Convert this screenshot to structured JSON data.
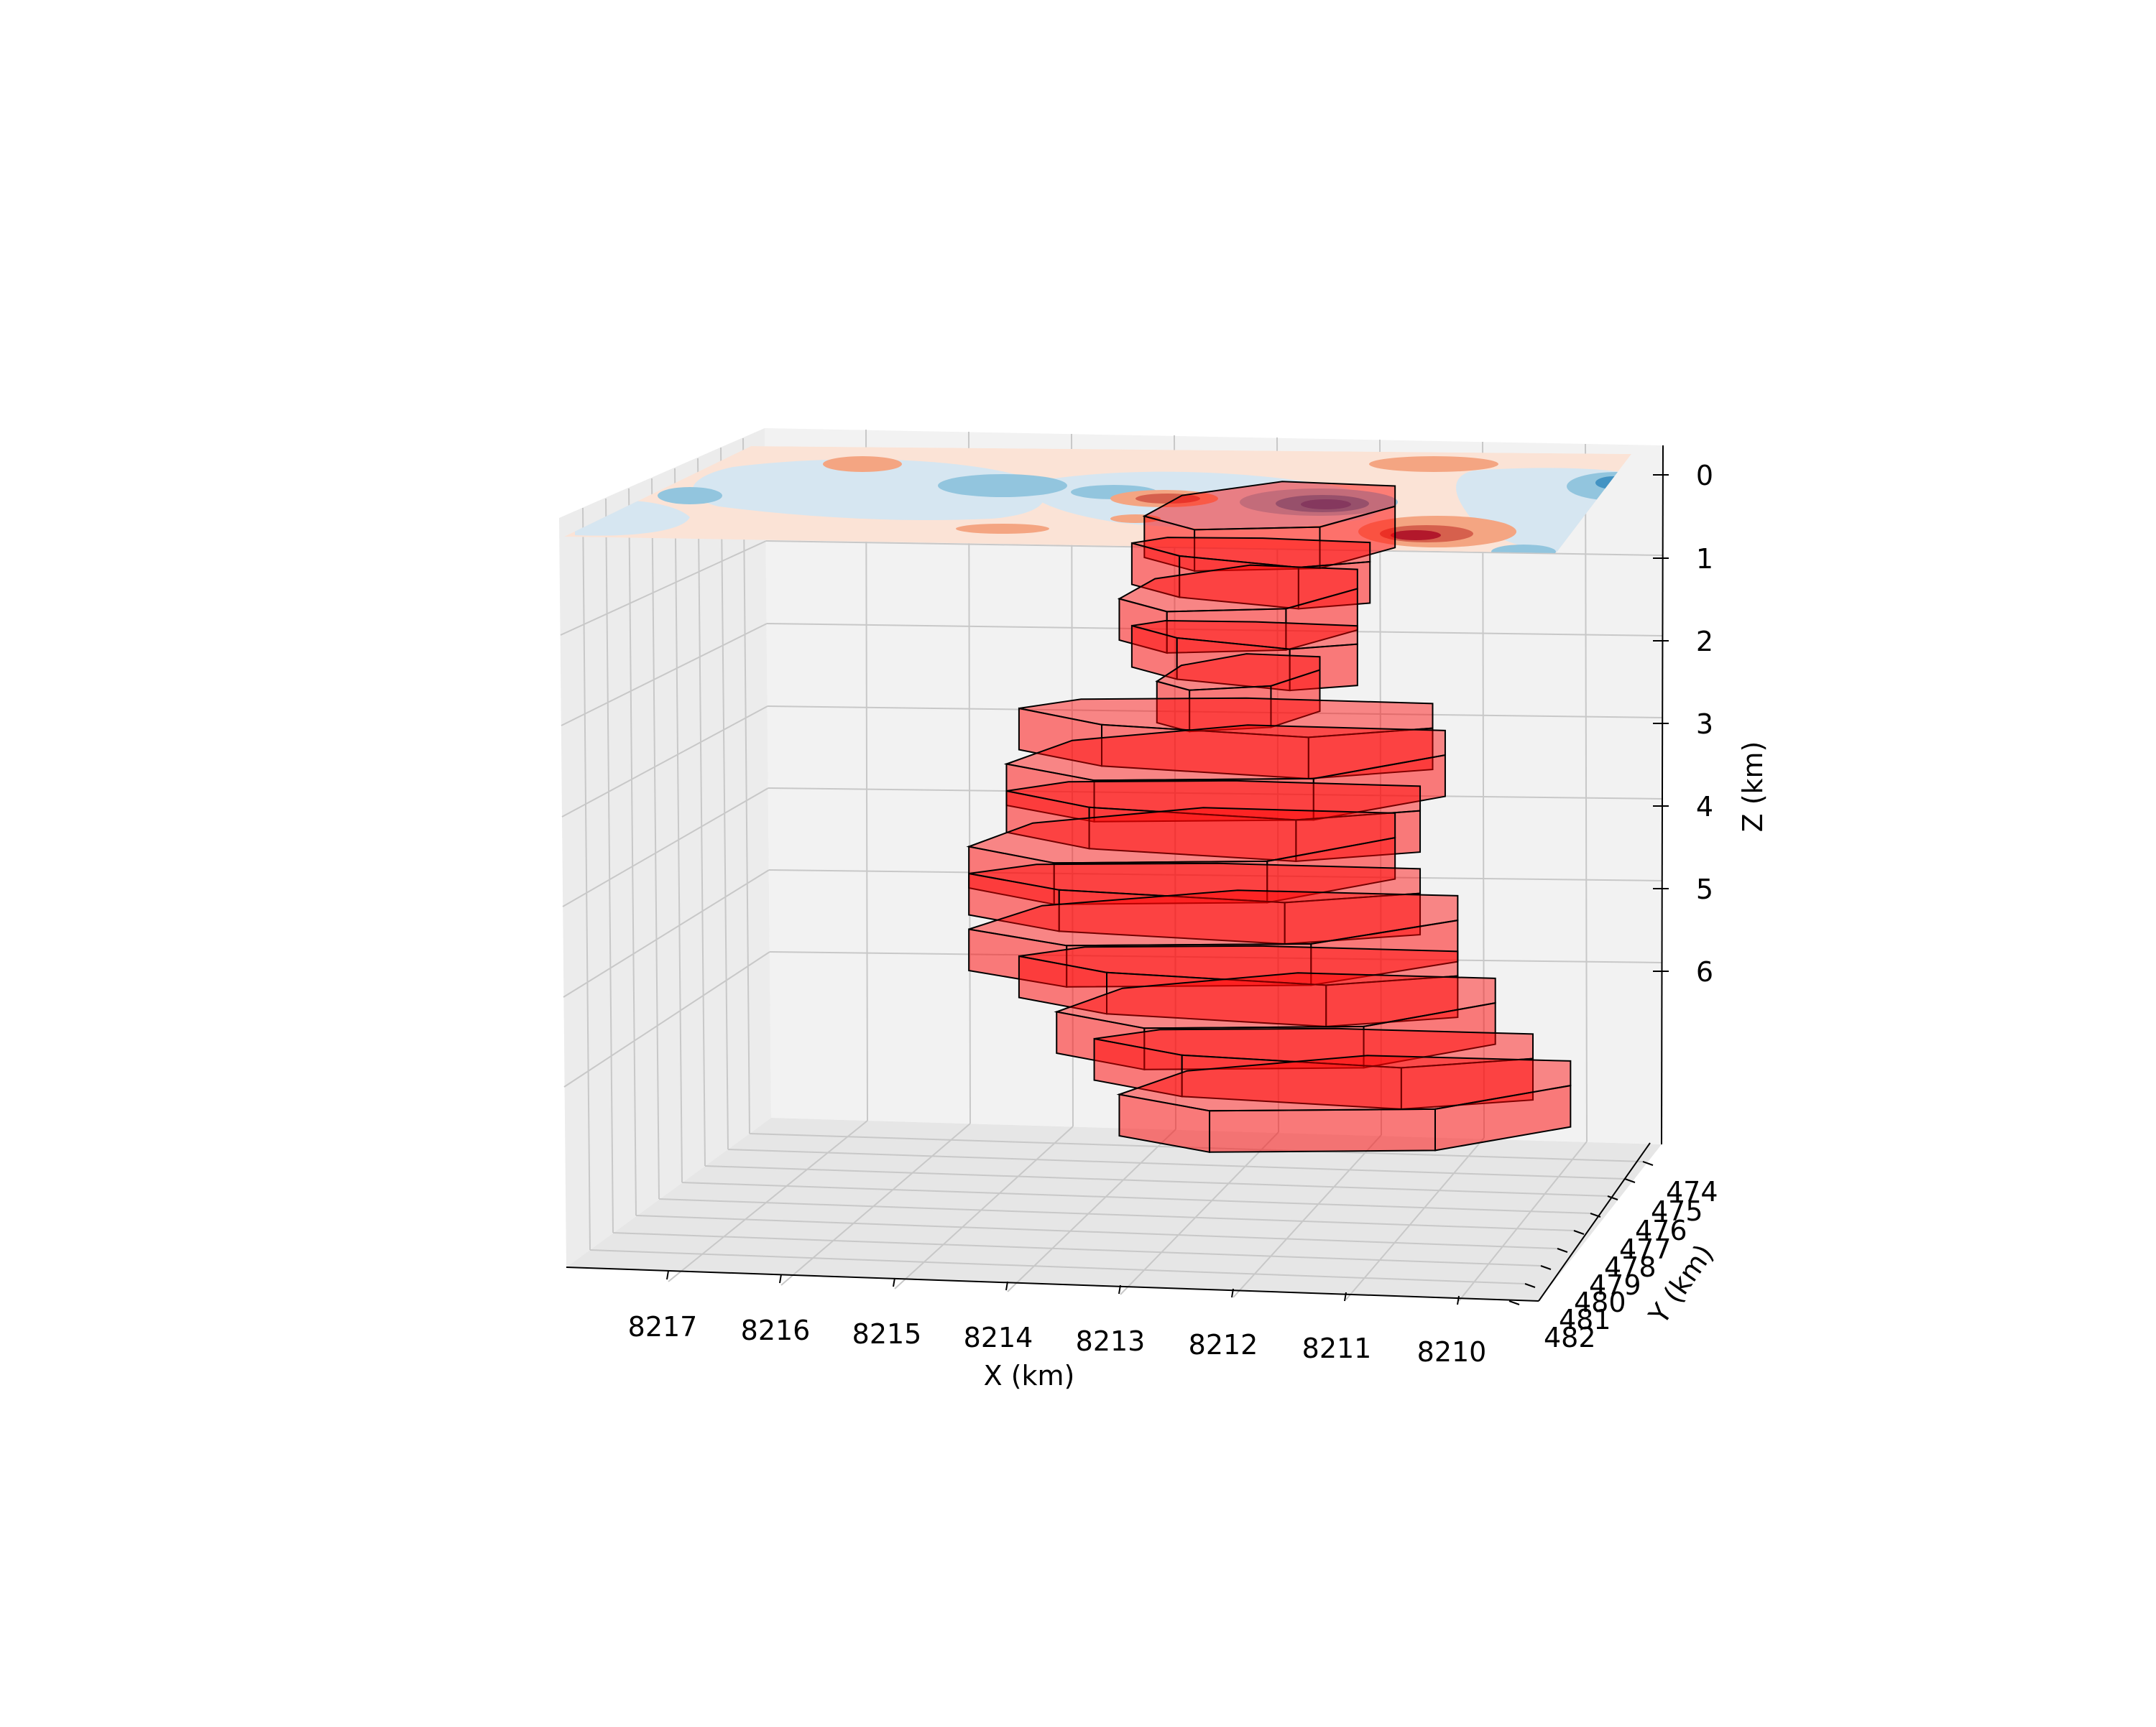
{
  "chart_data": {
    "type": "3d-polyprism-stack",
    "xlabel": "X (km)",
    "ylabel": "Y (km)",
    "zlabel": "Z (km)",
    "x_ticks": [
      "8217",
      "8216",
      "8215",
      "8214",
      "8213",
      "8212",
      "8211",
      "8210"
    ],
    "y_ticks": [
      "474",
      "475",
      "476",
      "477",
      "478",
      "479",
      "480",
      "481",
      "482"
    ],
    "z_ticks": [
      "0",
      "1",
      "2",
      "3",
      "4",
      "5",
      "6"
    ],
    "xlim": [
      8209.4,
      8218.0
    ],
    "ylim": [
      473.5,
      482.5
    ],
    "zlim": [
      0,
      8
    ],
    "z_inverted": true,
    "grid": true,
    "surface_colormap": "RdBu_r",
    "prism_color": "#ff0000",
    "prism_alpha": 0.5,
    "prism_edge_color": "#000000",
    "prisms": [
      {
        "z_top": 0.5,
        "z_bottom": 1.0,
        "x_range": [
          8211.4,
          8213.4
        ]
      },
      {
        "z_top": 1.0,
        "z_bottom": 1.5,
        "x_range": [
          8211.6,
          8213.5
        ]
      },
      {
        "z_top": 1.5,
        "z_bottom": 2.0,
        "x_range": [
          8211.7,
          8213.6
        ]
      },
      {
        "z_top": 2.0,
        "z_bottom": 2.5,
        "x_range": [
          8211.7,
          8213.5
        ]
      },
      {
        "z_top": 2.5,
        "z_bottom": 3.0,
        "x_range": [
          8212.0,
          8213.3
        ]
      },
      {
        "z_top": 3.0,
        "z_bottom": 3.5,
        "x_range": [
          8211.1,
          8214.4
        ]
      },
      {
        "z_top": 3.5,
        "z_bottom": 4.0,
        "x_range": [
          8211.0,
          8214.5
        ]
      },
      {
        "z_top": 4.0,
        "z_bottom": 4.5,
        "x_range": [
          8211.2,
          8214.5
        ]
      },
      {
        "z_top": 4.5,
        "z_bottom": 5.0,
        "x_range": [
          8211.4,
          8214.8
        ]
      },
      {
        "z_top": 5.0,
        "z_bottom": 5.5,
        "x_range": [
          8211.2,
          8214.8
        ]
      },
      {
        "z_top": 5.5,
        "z_bottom": 6.0,
        "x_range": [
          8210.9,
          8214.8
        ]
      },
      {
        "z_top": 6.0,
        "z_bottom": 6.5,
        "x_range": [
          8210.9,
          8214.4
        ]
      },
      {
        "z_top": 6.5,
        "z_bottom": 7.0,
        "x_range": [
          8210.6,
          8214.1
        ]
      },
      {
        "z_top": 7.0,
        "z_bottom": 7.5,
        "x_range": [
          8210.3,
          8213.8
        ]
      },
      {
        "z_top": 7.5,
        "z_bottom": 8.0,
        "x_range": [
          8210.0,
          8213.6
        ]
      }
    ]
  }
}
